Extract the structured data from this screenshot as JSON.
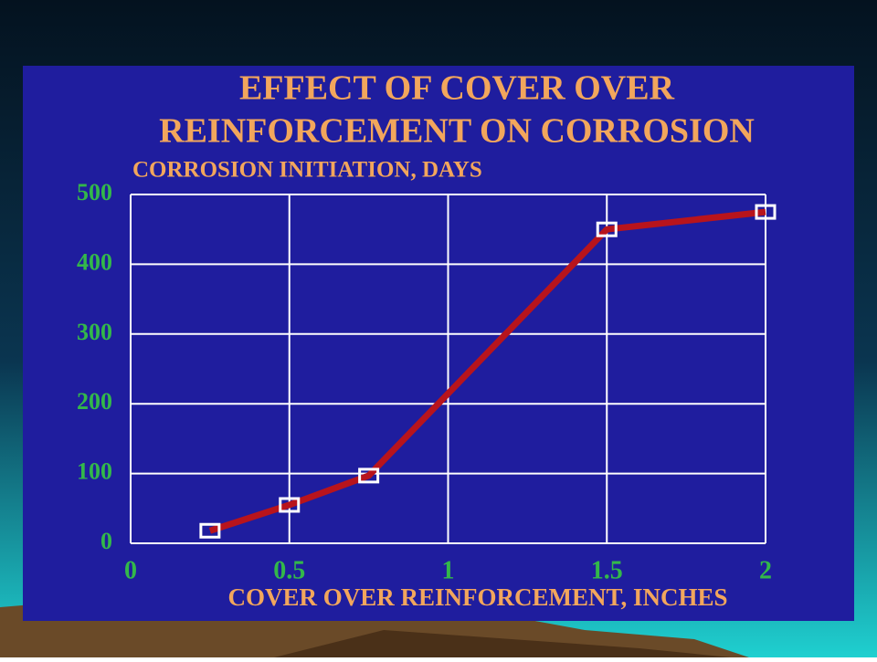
{
  "chart_data": {
    "type": "line",
    "title": [
      "EFFECT OF COVER OVER",
      "REINFORCEMENT ON CORROSION"
    ],
    "y_label": "CORROSION INITIATION, DAYS",
    "x_label": "COVER OVER REINFORCEMENT, INCHES",
    "x": [
      0.25,
      0.5,
      0.75,
      1.5,
      2
    ],
    "series": [
      {
        "color": "#b8141c",
        "values": [
          18,
          55,
          97,
          450,
          475
        ]
      }
    ],
    "xlim": [
      0,
      2
    ],
    "xticks": [
      0,
      0.5,
      1,
      1.5,
      2
    ],
    "ylim": [
      0,
      500
    ],
    "yticks": [
      0,
      100,
      200,
      300,
      400,
      500
    ],
    "grid": true
  }
}
